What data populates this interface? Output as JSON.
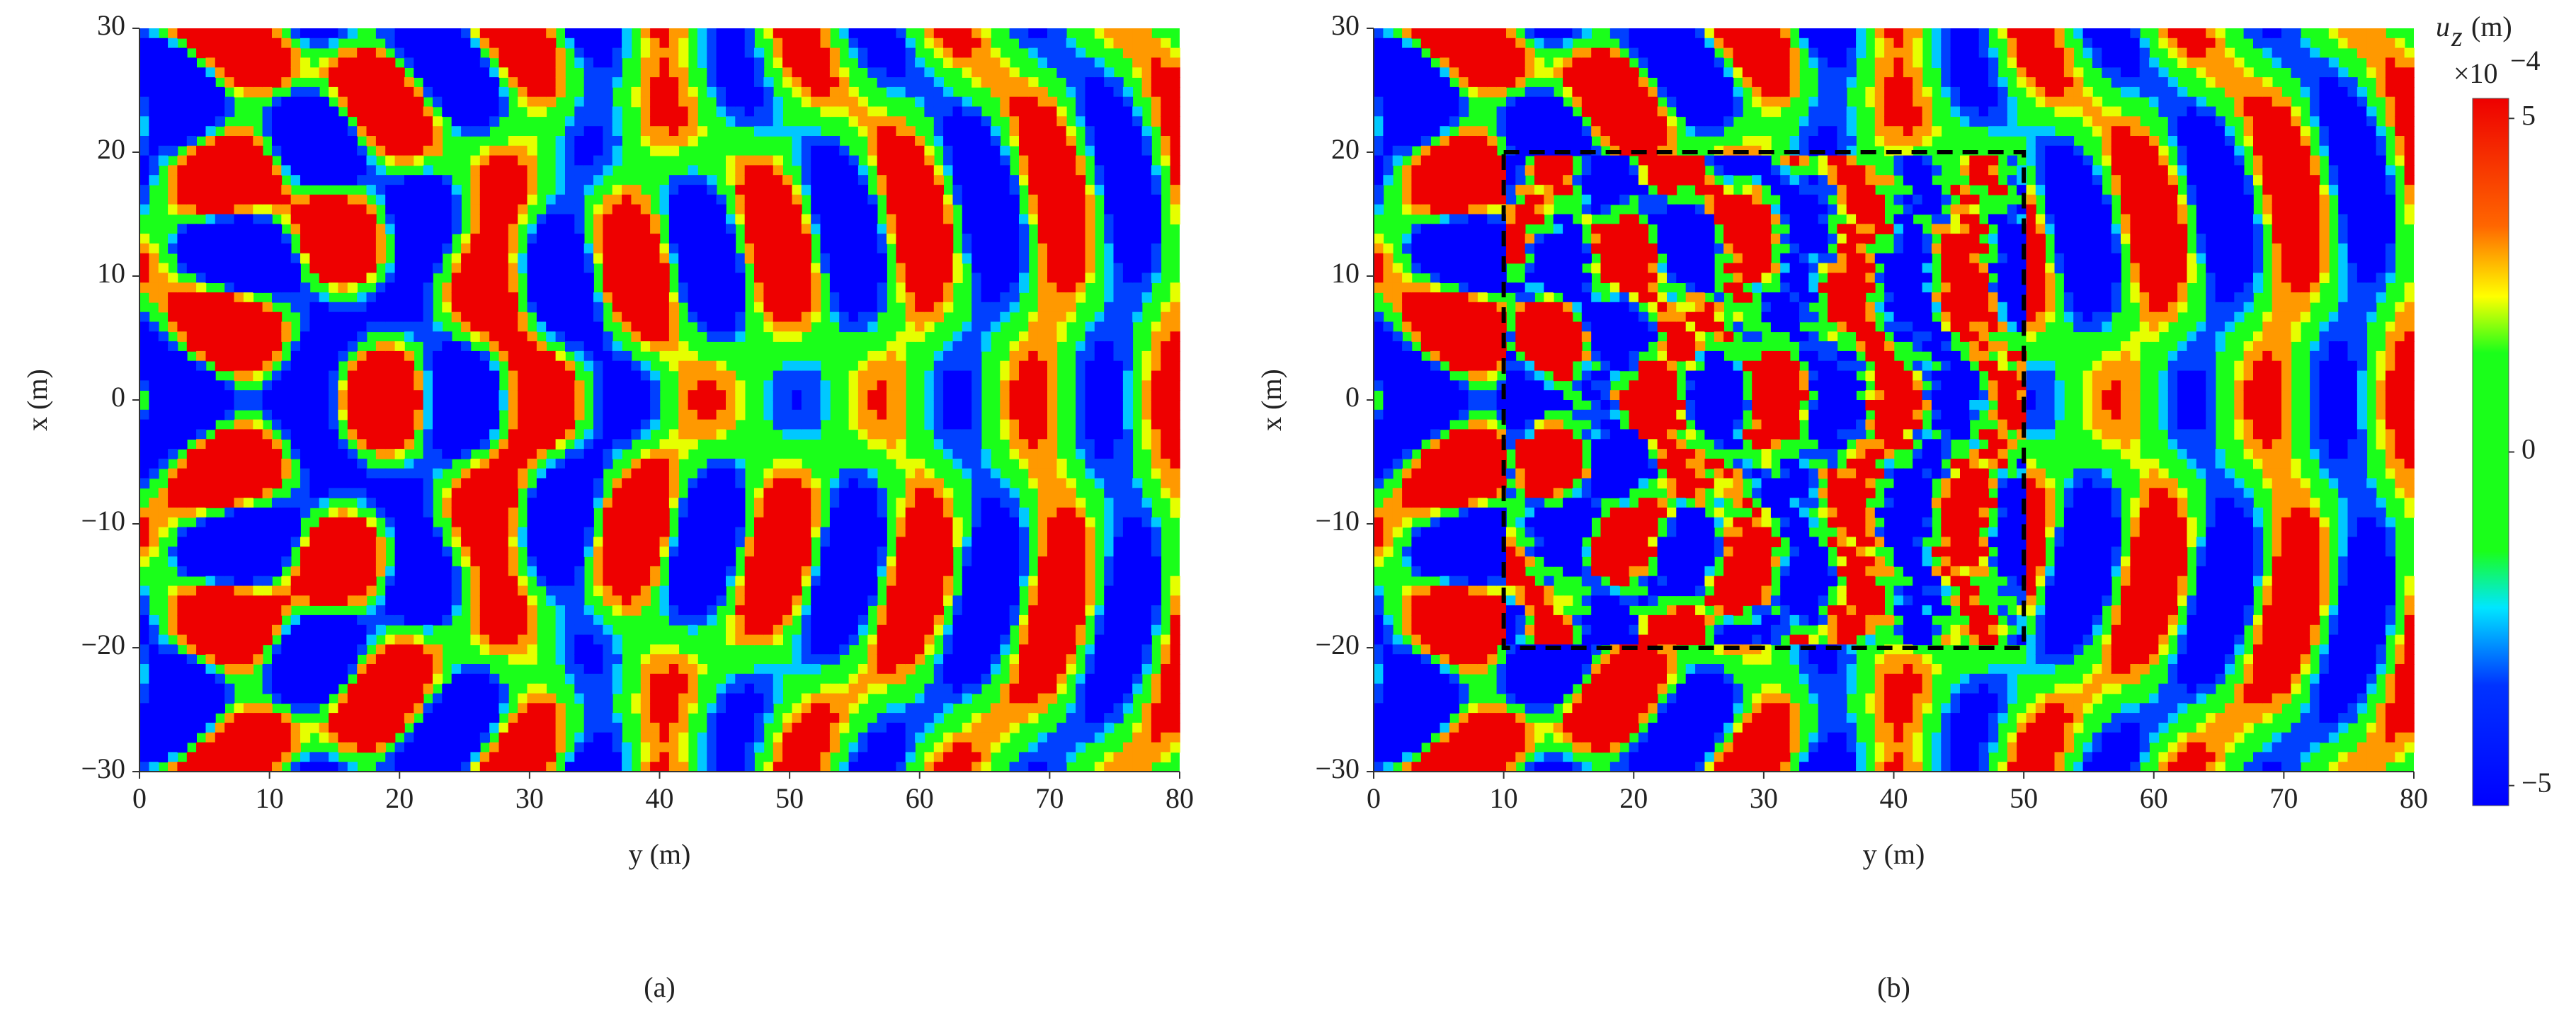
{
  "chart_data": [
    {
      "type": "heatmap",
      "panel_label": "(a)",
      "xlabel": "y (m)",
      "ylabel": "x (m)",
      "xlim": [
        0,
        80
      ],
      "ylim": [
        -30,
        30
      ],
      "xticks": [
        0,
        10,
        20,
        30,
        40,
        50,
        60,
        70,
        80
      ],
      "yticks": [
        {
          "value": -30,
          "label": "−30"
        },
        {
          "value": -20,
          "label": "−20"
        },
        {
          "value": -10,
          "label": "−10"
        },
        0,
        10,
        20,
        30
      ]
    },
    {
      "type": "heatmap",
      "panel_label": "(b)",
      "xlabel": "y (m)",
      "ylabel": "x (m)",
      "xlim": [
        0,
        80
      ],
      "ylim": [
        -30,
        30
      ],
      "xticks": [
        0,
        10,
        20,
        30,
        40,
        50,
        60,
        70,
        80
      ],
      "yticks": [
        {
          "value": -30,
          "label": "−30"
        },
        {
          "value": -20,
          "label": "−20"
        },
        {
          "value": -10,
          "label": "−10"
        },
        0,
        10,
        20,
        30
      ],
      "highlight_box": {
        "x": [
          10,
          50
        ],
        "y": [
          -20,
          20
        ]
      },
      "colorbar": {
        "label": "u",
        "label_subscript": "z",
        "label_unit": "(m)",
        "multiplier": "×10",
        "multiplier_exponent": "−4",
        "lim": [
          -5.3,
          5.3
        ],
        "ticks": [
          5,
          0,
          {
            "value": -5,
            "label": "−5"
          }
        ]
      }
    }
  ]
}
